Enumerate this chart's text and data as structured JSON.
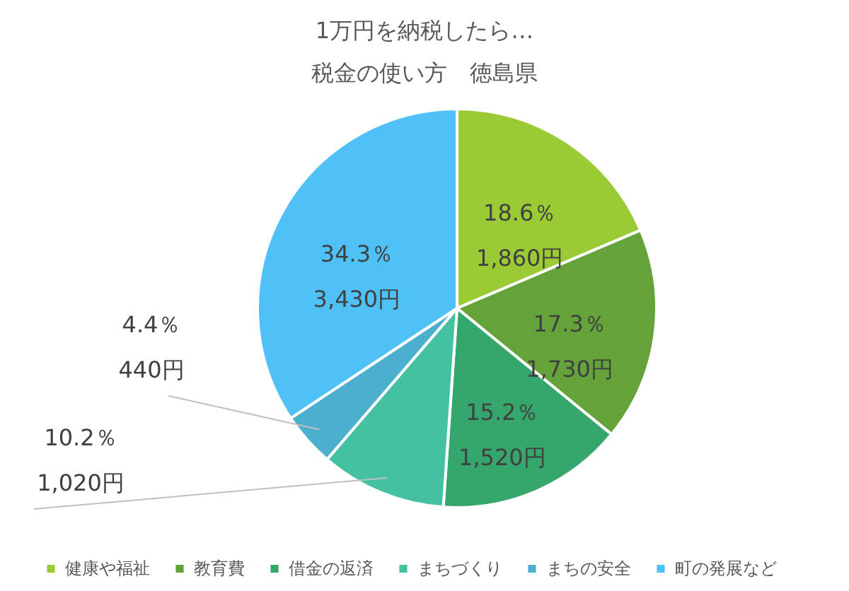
{
  "chart_data": {
    "type": "pie",
    "title": "1万円を納税したら…",
    "subtitle": "税金の使い方　徳島県",
    "categories": [
      "健康や福祉",
      "教育費",
      "借金の返済",
      "まちづくり",
      "まちの安全",
      "町の発展など"
    ],
    "values": [
      18.6,
      17.3,
      15.2,
      10.2,
      4.4,
      34.3
    ],
    "value_labels": [
      "18.6％\n1,860円",
      "17.3％\n1,730円",
      "15.2％\n1,520円",
      "10.2％\n1,020円",
      "4.4％\n440円",
      "34.3％\n3,430円"
    ],
    "colors": [
      "#9acb35",
      "#63a33a",
      "#35a66c",
      "#43c1a0",
      "#4bafce",
      "#4fc1f6"
    ],
    "legend": "bottom"
  }
}
